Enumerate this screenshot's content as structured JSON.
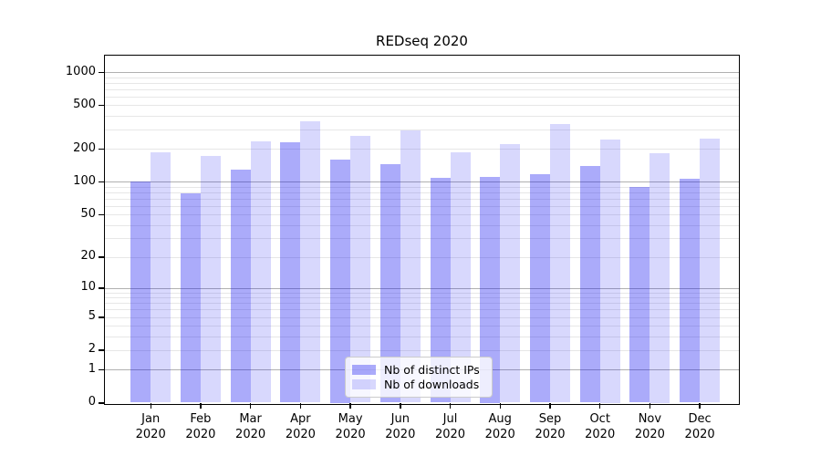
{
  "title": "REDseq 2020",
  "legend": {
    "items": [
      {
        "label": "Nb of distinct IPs",
        "color": "rgba(15,15,240,0.35)"
      },
      {
        "label": "Nb of downloads",
        "color": "rgba(15,15,240,0.16)"
      }
    ]
  },
  "axis": {
    "y_tick_labels": [
      1000,
      500,
      200,
      100,
      50,
      20,
      10,
      5,
      2,
      1,
      0
    ],
    "grid_major": [
      1,
      10,
      100,
      1000
    ],
    "grid_minor": [
      2,
      3,
      4,
      5,
      6,
      7,
      8,
      9,
      20,
      30,
      40,
      50,
      60,
      70,
      80,
      90,
      200,
      300,
      400,
      500,
      600,
      700,
      800,
      900
    ],
    "months": [
      "Jan",
      "Feb",
      "Mar",
      "Apr",
      "May",
      "Jun",
      "Jul",
      "Aug",
      "Sep",
      "Oct",
      "Nov",
      "Dec"
    ],
    "year": "2020"
  },
  "colors": {
    "bar_ips": "rgba(15,15,240,0.35)",
    "bar_downloads": "rgba(15,15,240,0.16)",
    "grid_major": "#b0b0b0",
    "grid_minor": "#e7e7e7",
    "spine": "#000000"
  },
  "chart_data": {
    "type": "bar",
    "title": "REDseq 2020",
    "y_scale": "log1p (symlog-like; ticks 0,1,2,5,10,20,50,100,200,500,1000)",
    "ylim": [
      0,
      1400
    ],
    "grid": "on",
    "legend_position": "lower center-right inside plot",
    "categories": [
      "Jan 2020",
      "Feb 2020",
      "Mar 2020",
      "Apr 2020",
      "May 2020",
      "Jun 2020",
      "Jul 2020",
      "Aug 2020",
      "Sep 2020",
      "Oct 2020",
      "Nov 2020",
      "Dec 2020"
    ],
    "series": [
      {
        "name": "Nb of distinct IPs",
        "values": [
          100,
          78,
          130,
          232,
          160,
          146,
          108,
          112,
          117,
          139,
          90,
          107
        ]
      },
      {
        "name": "Nb of downloads",
        "values": [
          188,
          172,
          235,
          359,
          262,
          293,
          185,
          223,
          337,
          246,
          183,
          250
        ]
      }
    ]
  }
}
